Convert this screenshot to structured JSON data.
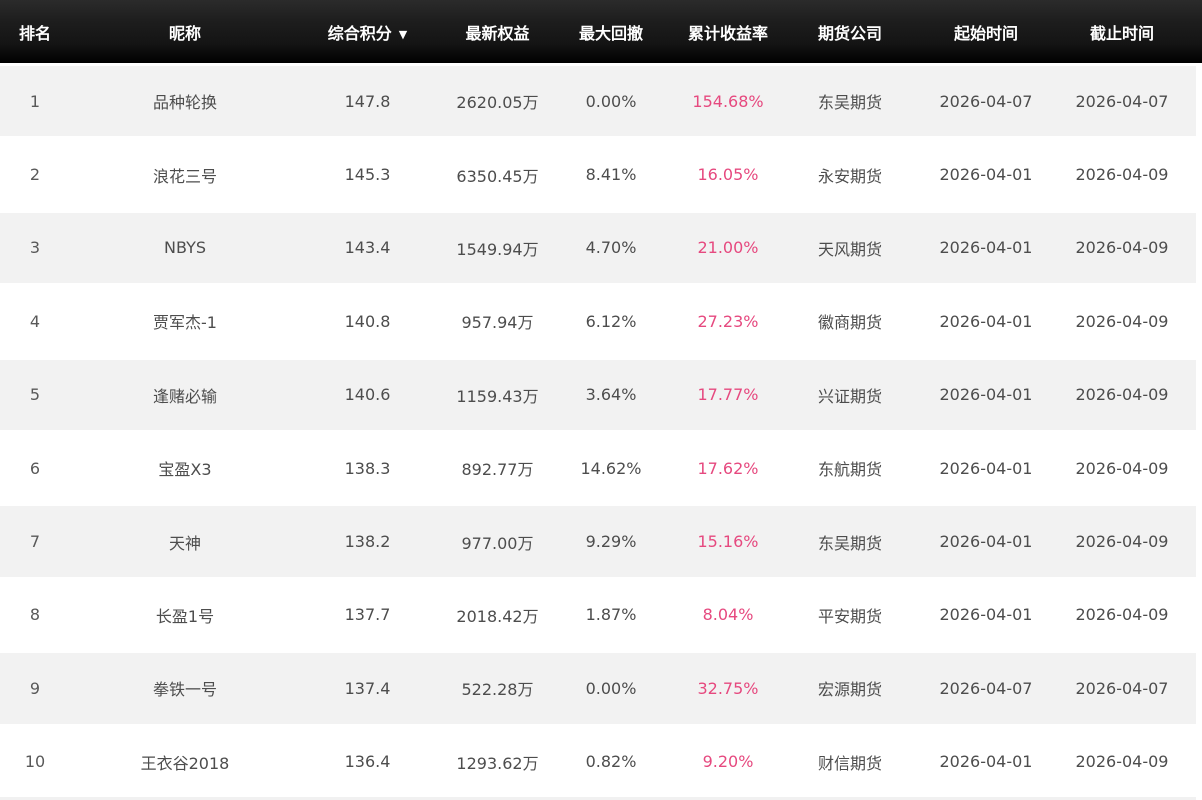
{
  "colors": {
    "accent_pink": "#e6497f",
    "header_background": "#1a1a1a",
    "stripe_background": "#f2f2f2",
    "body_text": "#4d4d4d"
  },
  "table": {
    "columns": [
      {
        "key": "rank",
        "label": "排名"
      },
      {
        "key": "nickname",
        "label": "昵称"
      },
      {
        "key": "score",
        "label": "综合积分",
        "sort": "desc",
        "sort_icon": "▼"
      },
      {
        "key": "equity",
        "label": "最新权益"
      },
      {
        "key": "drawdown",
        "label": "最大回撤"
      },
      {
        "key": "return_rate",
        "label": "累计收益率"
      },
      {
        "key": "company",
        "label": "期货公司"
      },
      {
        "key": "start_date",
        "label": "起始时间"
      },
      {
        "key": "end_date",
        "label": "截止时间"
      }
    ],
    "rows": [
      {
        "rank": "1",
        "nickname": "品种轮换",
        "score": "147.8",
        "equity": "2620.05万",
        "drawdown": "0.00%",
        "return_rate": "154.68%",
        "company": "东吴期货",
        "start_date": "2026-04-07",
        "end_date": "2026-04-07"
      },
      {
        "rank": "2",
        "nickname": "浪花三号",
        "score": "145.3",
        "equity": "6350.45万",
        "drawdown": "8.41%",
        "return_rate": "16.05%",
        "company": "永安期货",
        "start_date": "2026-04-01",
        "end_date": "2026-04-09"
      },
      {
        "rank": "3",
        "nickname": "NBYS",
        "score": "143.4",
        "equity": "1549.94万",
        "drawdown": "4.70%",
        "return_rate": "21.00%",
        "company": "天风期货",
        "start_date": "2026-04-01",
        "end_date": "2026-04-09"
      },
      {
        "rank": "4",
        "nickname": "贾军杰-1",
        "score": "140.8",
        "equity": "957.94万",
        "drawdown": "6.12%",
        "return_rate": "27.23%",
        "company": "徽商期货",
        "start_date": "2026-04-01",
        "end_date": "2026-04-09"
      },
      {
        "rank": "5",
        "nickname": "逢赌必输",
        "score": "140.6",
        "equity": "1159.43万",
        "drawdown": "3.64%",
        "return_rate": "17.77%",
        "company": "兴证期货",
        "start_date": "2026-04-01",
        "end_date": "2026-04-09"
      },
      {
        "rank": "6",
        "nickname": "宝盈X3",
        "score": "138.3",
        "equity": "892.77万",
        "drawdown": "14.62%",
        "return_rate": "17.62%",
        "company": "东航期货",
        "start_date": "2026-04-01",
        "end_date": "2026-04-09"
      },
      {
        "rank": "7",
        "nickname": "天神",
        "score": "138.2",
        "equity": "977.00万",
        "drawdown": "9.29%",
        "return_rate": "15.16%",
        "company": "东吴期货",
        "start_date": "2026-04-01",
        "end_date": "2026-04-09"
      },
      {
        "rank": "8",
        "nickname": "长盈1号",
        "score": "137.7",
        "equity": "2018.42万",
        "drawdown": "1.87%",
        "return_rate": "8.04%",
        "company": "平安期货",
        "start_date": "2026-04-01",
        "end_date": "2026-04-09"
      },
      {
        "rank": "9",
        "nickname": "拳铁一号",
        "score": "137.4",
        "equity": "522.28万",
        "drawdown": "0.00%",
        "return_rate": "32.75%",
        "company": "宏源期货",
        "start_date": "2026-04-07",
        "end_date": "2026-04-07"
      },
      {
        "rank": "10",
        "nickname": "王衣谷2018",
        "score": "136.4",
        "equity": "1293.62万",
        "drawdown": "0.82%",
        "return_rate": "9.20%",
        "company": "财信期货",
        "start_date": "2026-04-01",
        "end_date": "2026-04-09"
      }
    ]
  }
}
